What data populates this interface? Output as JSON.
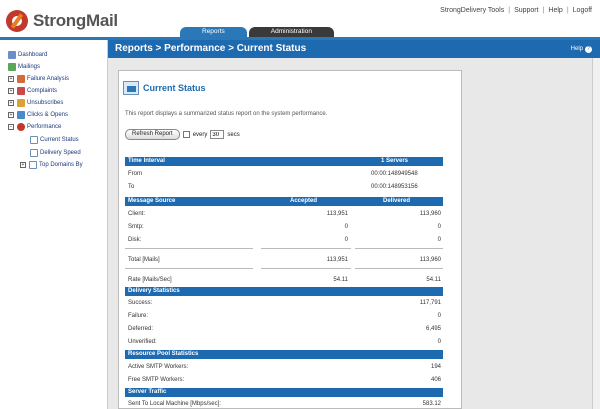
{
  "brand": {
    "name": "StrongMail"
  },
  "toplinks": [
    "StrongDelivery Tools",
    "Support",
    "Help",
    "Logoff"
  ],
  "tabs": [
    {
      "label": "Reports"
    },
    {
      "label": "Administration"
    }
  ],
  "sidebar": {
    "items": [
      {
        "label": "Dashboard"
      },
      {
        "label": "Mailings"
      },
      {
        "label": "Failure Analysis",
        "expander": "+"
      },
      {
        "label": "Complaints",
        "expander": "+"
      },
      {
        "label": "Unsubscribes",
        "expander": "+"
      },
      {
        "label": "Clicks & Opens",
        "expander": "+"
      },
      {
        "label": "Performance",
        "expander": "−"
      },
      {
        "label": "Current Status"
      },
      {
        "label": "Delivery Speed"
      },
      {
        "label": "Top Domains By",
        "expander": "+"
      }
    ]
  },
  "page": {
    "breadcrumb": "Reports > Performance > Current Status",
    "help_label": "Help",
    "card_title": "Current Status",
    "description": "This report displays a summarized status report on the system performance.",
    "refresh_button": "Refresh Report",
    "every_label": "every",
    "interval_value": "30",
    "secs_label": "secs"
  },
  "report": {
    "time_interval": {
      "header": "Time Interval",
      "servers_header": "1 Servers",
      "from_label": "From",
      "from_value": "00:00:148949548",
      "to_label": "To",
      "to_value": "00:00:148953156"
    },
    "message_source": {
      "header": "Message Source",
      "col_accepted": "Accepted",
      "col_delivered": "Delivered",
      "rows": [
        {
          "label": "Client:",
          "accepted": "113,951",
          "delivered": "113,960"
        },
        {
          "label": "Smtp:",
          "accepted": "0",
          "delivered": "0"
        },
        {
          "label": "Disk:",
          "accepted": "0",
          "delivered": "0"
        }
      ],
      "total": {
        "label": "Total [Mails]",
        "accepted": "113,951",
        "delivered": "113,960"
      },
      "rate": {
        "label": "Rate [Mails/Sec]",
        "accepted": "54.11",
        "delivered": "54.11"
      }
    },
    "delivery_statistics": {
      "header": "Delivery Statistics",
      "rows": [
        {
          "label": "Success:",
          "value": "117,791"
        },
        {
          "label": "Failure:",
          "value": "0"
        },
        {
          "label": "Deferred:",
          "value": "6,495"
        },
        {
          "label": "Unverified:",
          "value": "0"
        }
      ]
    },
    "resource_pool": {
      "header": "Resource Pool Statistics",
      "rows": [
        {
          "label": "Active SMTP Workers:",
          "value": "194"
        },
        {
          "label": "Free SMTP Workers:",
          "value": "406"
        }
      ]
    },
    "server_traffic": {
      "header": "Server Traffic",
      "rows": [
        {
          "label": "Sent To Local Machine [Mbps/sec]:",
          "value": "583.12"
        }
      ]
    }
  },
  "colors": {
    "accent": "#1e6ab0",
    "tab_dark": "#3a3a3a",
    "background": "#e8e8e8"
  }
}
